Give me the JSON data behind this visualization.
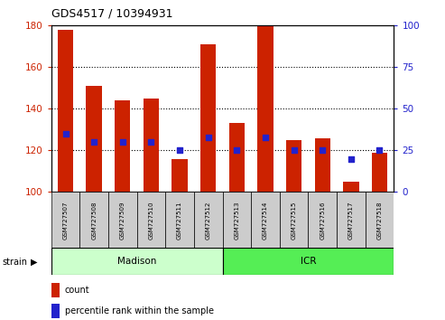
{
  "title": "GDS4517 / 10394931",
  "samples": [
    "GSM727507",
    "GSM727508",
    "GSM727509",
    "GSM727510",
    "GSM727511",
    "GSM727512",
    "GSM727513",
    "GSM727514",
    "GSM727515",
    "GSM727516",
    "GSM727517",
    "GSM727518"
  ],
  "count_values": [
    178,
    151,
    144,
    145,
    116,
    171,
    133,
    180,
    125,
    126,
    105,
    119
  ],
  "percentile_values": [
    35,
    30,
    30,
    30,
    25,
    33,
    25,
    33,
    25,
    25,
    20,
    25
  ],
  "ylim_left": [
    100,
    180
  ],
  "ylim_right": [
    0,
    100
  ],
  "yticks_left": [
    100,
    120,
    140,
    160,
    180
  ],
  "yticks_right": [
    0,
    25,
    50,
    75,
    100
  ],
  "bar_color": "#cc2200",
  "percentile_color": "#2222cc",
  "madison_color": "#ccffcc",
  "icr_color": "#55ee55",
  "madison_samples": 6,
  "icr_samples": 6,
  "ylabel_left_color": "#cc2200",
  "ylabel_right_color": "#2222cc",
  "bar_width": 0.55,
  "percentile_marker_size": 20
}
